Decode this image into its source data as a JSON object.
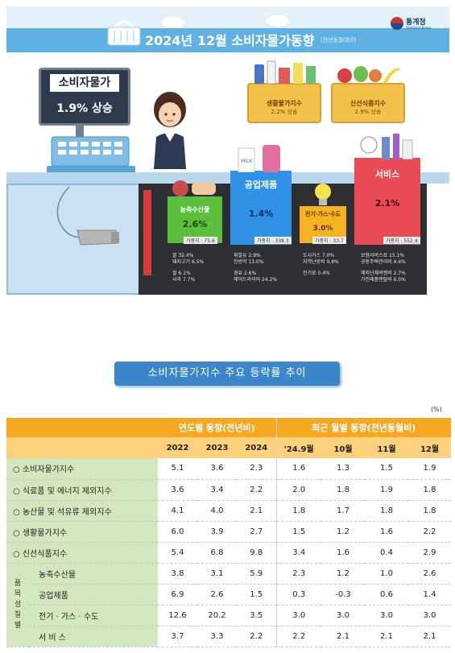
{
  "header": {
    "title": "2024년 12월 소비자물가동향",
    "subtitle": "(전년동월대비)",
    "org_name": "통계청",
    "org_en": "Statistics Korea"
  },
  "infographic": {
    "cpi": {
      "label": "소비자물가",
      "value": "1.9% 상승"
    },
    "living": {
      "label": "생활물가지수",
      "value": "2.2% 상승"
    },
    "fresh": {
      "label": "신선식품지수",
      "value": "2.9% 상승"
    },
    "agri": {
      "label": "농축수산물",
      "value": "2.6%",
      "weight": "가중치 : 75.6",
      "items": [
        "귤 32.4%",
        "돼지고기 6.5%",
        "쌀 6.1%",
        "사과 7.7%"
      ]
    },
    "industrial": {
      "label": "공업제품",
      "value": "1.4%",
      "weight": "가중치 : 338.3",
      "items": [
        "휘발유 2.9%",
        "한방약 13.0%",
        "경유 2.6%",
        "헤어드라이어 24.2%"
      ]
    },
    "utility": {
      "label": "전기·가스·수도",
      "value": "3.0%",
      "weight": "가중치 : 33.7",
      "items": [
        "도시가스 7.0%",
        "지역난방비 9.8%",
        "전기료 0.4%"
      ]
    },
    "service": {
      "label": "서비스",
      "value": "2.1%",
      "weight": "가중치 : 552.4",
      "items": [
        "보험서비스료 15.1%",
        "공동주택관리비 4.4%",
        "해외단체여행비 2.7%",
        "가전제품렌탈비 6.0%"
      ]
    },
    "milk_label": "MILK"
  },
  "section_title": "소비자물가지수 주요 등락률 추이",
  "table": {
    "unit": "(%)",
    "group_yearly": "연도별 동향(전년비)",
    "group_monthly": "최근 월별 동향(전년동월비)",
    "columns": [
      "2022",
      "2023",
      "2024",
      "'24.9월",
      "10월",
      "11월",
      "12월"
    ],
    "item_group_label": [
      "품",
      "목",
      "성",
      "질",
      "별"
    ],
    "rows": [
      {
        "label": "○  소비자물가지수",
        "values": [
          "5.1",
          "3.6",
          "2.3",
          "1.6",
          "1.3",
          "1.5",
          "1.9"
        ]
      },
      {
        "label": "○  식료품 및 에너지 제외지수",
        "values": [
          "3.6",
          "3.4",
          "2.2",
          "2.0",
          "1.8",
          "1.9",
          "1.8"
        ]
      },
      {
        "label": "○  농산물 및 석유류 제외지수",
        "values": [
          "4.1",
          "4.0",
          "2.1",
          "1.8",
          "1.7",
          "1.8",
          "1.8"
        ]
      },
      {
        "label": "○  생활물가지수",
        "values": [
          "6.0",
          "3.9",
          "2.7",
          "1.5",
          "1.2",
          "1.6",
          "2.2"
        ]
      },
      {
        "label": "○  신선식품지수",
        "values": [
          "5.4",
          "6.8",
          "9.8",
          "3.4",
          "1.6",
          "0.4",
          "2.9"
        ]
      }
    ],
    "sub_rows": [
      {
        "label": "농축수산물",
        "values": [
          "3.8",
          "3.1",
          "5.9",
          "2.3",
          "1.2",
          "1.0",
          "2.6"
        ]
      },
      {
        "label": "공업제품",
        "values": [
          "6.9",
          "2.6",
          "1.5",
          "0.3",
          "-0.3",
          "0.6",
          "1.4"
        ]
      },
      {
        "label": "전기 · 가스 · 수도",
        "values": [
          "12.6",
          "20.2",
          "3.5",
          "3.0",
          "3.0",
          "3.0",
          "3.0"
        ]
      },
      {
        "label": "서 비 스",
        "values": [
          "3.7",
          "3.3",
          "2.2",
          "2.2",
          "2.1",
          "2.1",
          "2.1"
        ]
      }
    ]
  }
}
